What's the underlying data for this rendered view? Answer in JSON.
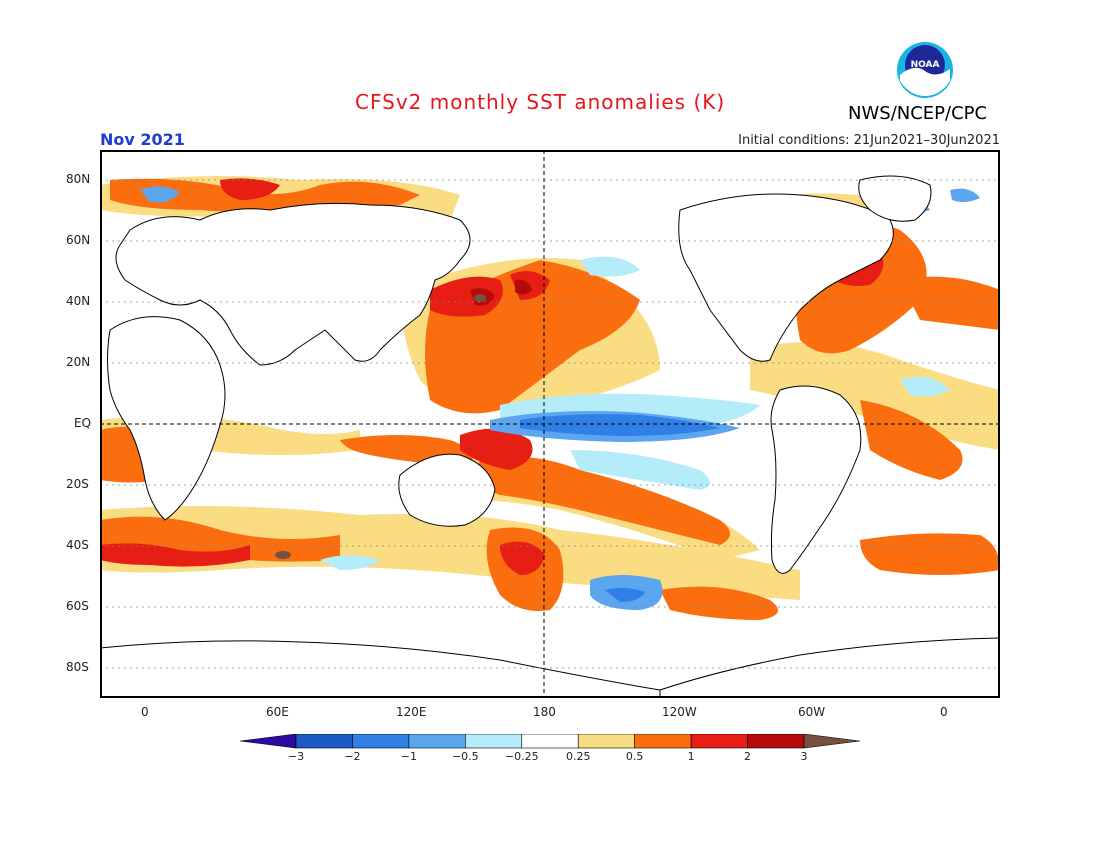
{
  "header": {
    "title": "CFSv2 monthly SST anomalies (K)",
    "period": "Nov 2021",
    "initial_conditions": "Initial conditions: 21Jun2021–30Jun2021",
    "agency": "NWS/NCEP/CPC",
    "logo_text": "NOAA"
  },
  "map": {
    "lat_labels": [
      "80N",
      "60N",
      "40N",
      "20N",
      "EQ",
      "20S",
      "40S",
      "60S",
      "80S"
    ],
    "lon_labels": [
      "0",
      "60E",
      "120E",
      "180",
      "120W",
      "60W",
      "0"
    ]
  },
  "colorbar": {
    "tick_labels": [
      "−3",
      "−2",
      "−1",
      "−0.5",
      "−0.25",
      "0.25",
      "0.5",
      "1",
      "2",
      "3"
    ],
    "colors": [
      "#2a0aa0",
      "#1c5ac8",
      "#2f7fe6",
      "#5ca6f0",
      "#b4ecfa",
      "#ffffff",
      "#fadc82",
      "#fa6e0f",
      "#e61e14",
      "#b40a0a",
      "#785040"
    ]
  }
}
